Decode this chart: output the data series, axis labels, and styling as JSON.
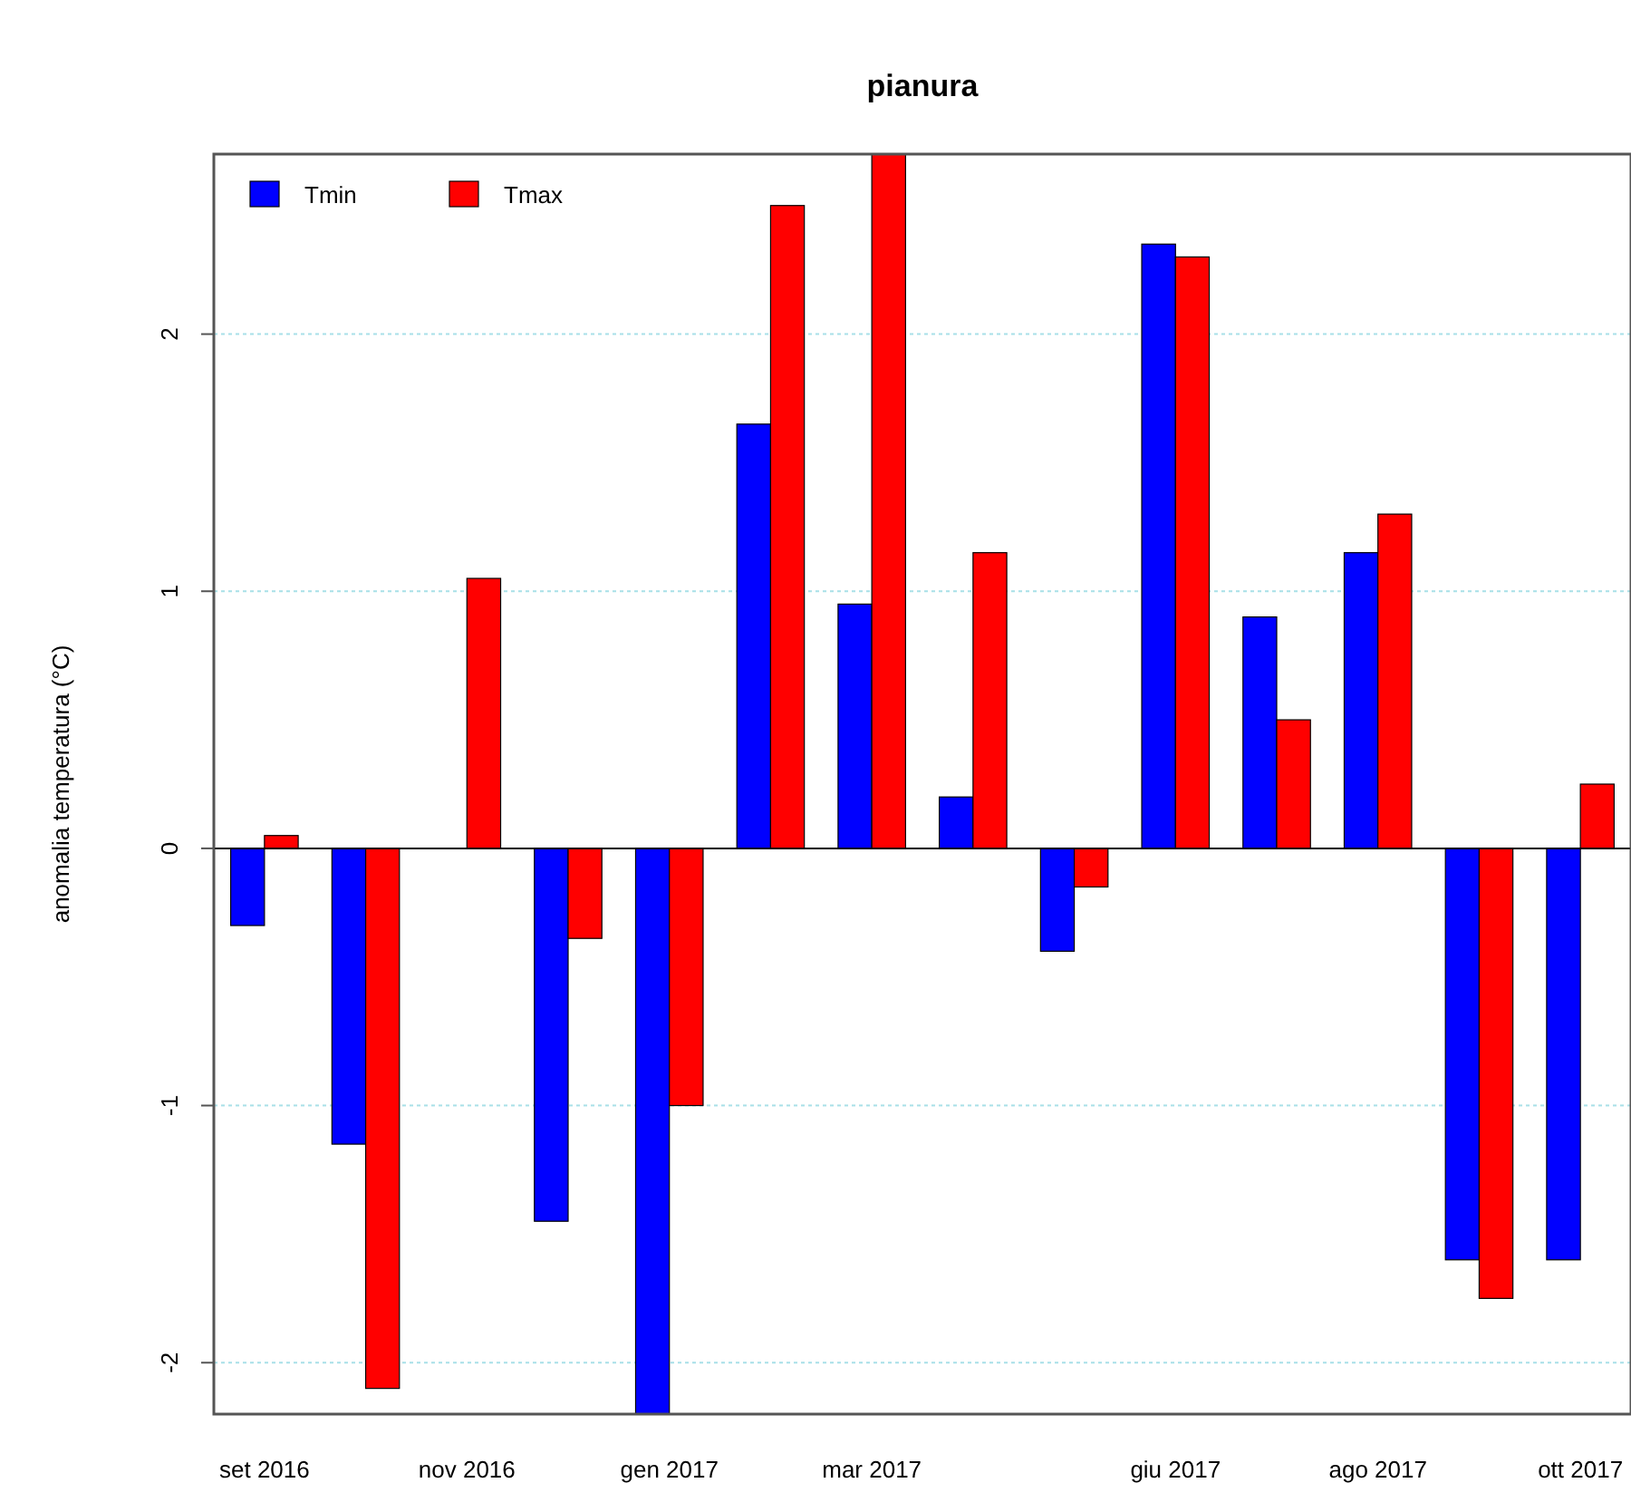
{
  "chart_data": {
    "type": "bar",
    "title": "pianura",
    "ylabel": "anomalia temperatura (°C)",
    "categories": [
      "set 2016",
      null,
      "nov 2016",
      null,
      "gen 2017",
      null,
      "mar 2017",
      null,
      null,
      "giu 2017",
      null,
      "ago 2017",
      null,
      "ott 2017"
    ],
    "series": [
      {
        "name": "Tmin",
        "color": "#0000ff",
        "values": [
          -0.3,
          -1.15,
          0,
          -1.45,
          -2.2,
          1.65,
          0.95,
          0.2,
          -0.4,
          2.35,
          0.9,
          1.15,
          -1.6,
          -1.6
        ]
      },
      {
        "name": "Tmax",
        "color": "#ff0000",
        "values": [
          0.05,
          -2.1,
          1.05,
          -0.35,
          -1.0,
          2.5,
          2.7,
          1.15,
          -0.15,
          2.3,
          0.5,
          1.3,
          -1.75,
          0.25
        ]
      }
    ],
    "ylim": [
      -2.2,
      2.7
    ],
    "yticks": [
      -2,
      -1,
      0,
      1,
      2
    ],
    "grid": "y",
    "legend": "top left",
    "ref_lines": [
      {
        "axis": "y",
        "value": 0,
        "color": "#000000"
      }
    ]
  }
}
